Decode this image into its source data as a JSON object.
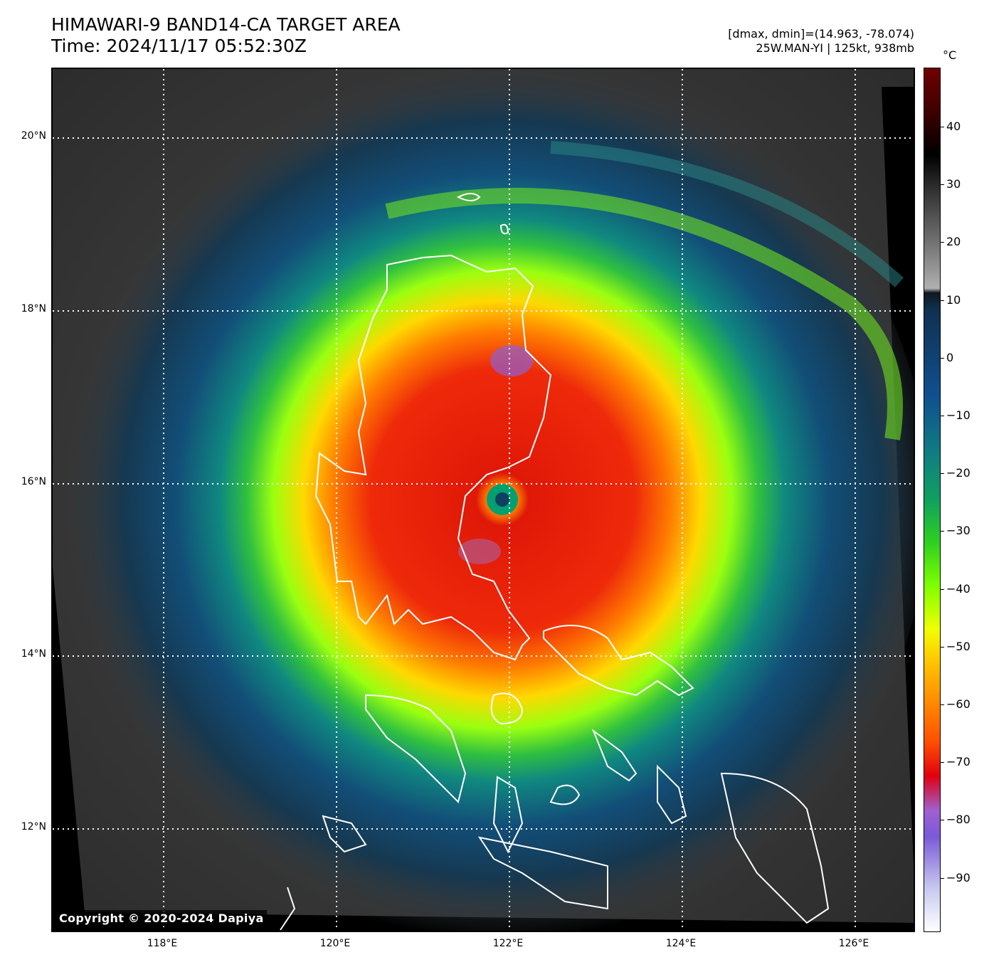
{
  "header": {
    "title_line1": "HIMAWARI-9 BAND14-CA TARGET AREA",
    "title_line2": "Time: 2024/11/17 05:52:30Z",
    "meta_line1": "[dmax, dmin]=(14.963, -78.074)",
    "meta_line2": "25W.MAN-YI | 125kt, 938mb"
  },
  "map": {
    "lat_labels": [
      "20°N",
      "18°N",
      "16°N",
      "14°N",
      "12°N"
    ],
    "lon_labels": [
      "118°E",
      "120°E",
      "122°E",
      "124°E",
      "126°E"
    ],
    "copyright": "Copyright © 2020-2024 Dapiya"
  },
  "colorbar": {
    "unit": "°C",
    "ticks": [
      "40",
      "30",
      "20",
      "10",
      "0",
      "−10",
      "−20",
      "−30",
      "−40",
      "−50",
      "−60",
      "−70",
      "−80",
      "−90"
    ]
  }
}
